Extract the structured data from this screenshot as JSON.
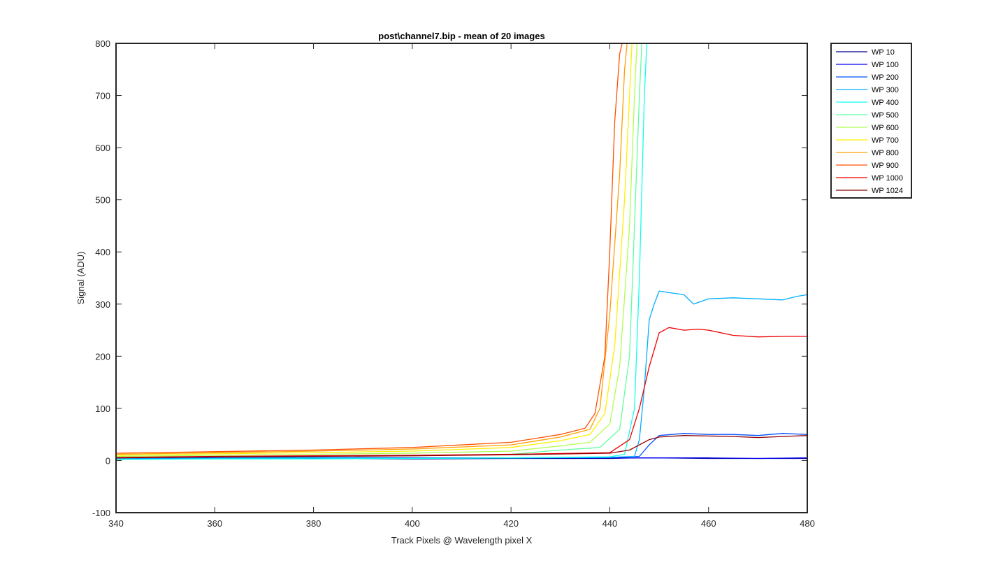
{
  "chart_data": {
    "type": "line",
    "title": "post\\channel7.bip - mean of 20 images",
    "xlabel": "Track Pixels @ Wavelength pixel X",
    "ylabel": "Signal (ADU)",
    "xlim": [
      340,
      480
    ],
    "ylim": [
      -100,
      800
    ],
    "xticks": [
      340,
      360,
      380,
      400,
      420,
      440,
      460,
      480
    ],
    "yticks": [
      -100,
      0,
      100,
      200,
      300,
      400,
      500,
      600,
      700,
      800
    ],
    "legend_position": "outside-top-right",
    "grid": false,
    "series": [
      {
        "name": "WP 10",
        "color": "#00008F",
        "x": [
          340,
          360,
          380,
          400,
          420,
          440,
          445,
          450,
          460,
          470,
          480
        ],
        "y": [
          3,
          4,
          4,
          3,
          4,
          4,
          5,
          5,
          4,
          4,
          4
        ]
      },
      {
        "name": "WP 100",
        "color": "#0000EF",
        "x": [
          340,
          360,
          380,
          400,
          420,
          440,
          445,
          450,
          460,
          470,
          480
        ],
        "y": [
          4,
          5,
          5,
          4,
          5,
          5,
          5,
          5,
          5,
          4,
          5
        ]
      },
      {
        "name": "WP 200",
        "color": "#0050FF",
        "x": [
          340,
          360,
          380,
          400,
          420,
          440,
          446,
          448,
          450,
          455,
          460,
          465,
          470,
          475,
          480
        ],
        "y": [
          4,
          5,
          6,
          5,
          5,
          6,
          8,
          30,
          48,
          52,
          50,
          50,
          48,
          52,
          50
        ]
      },
      {
        "name": "WP 300",
        "color": "#00AFFF",
        "x": [
          340,
          360,
          380,
          400,
          420,
          440,
          445,
          446,
          447,
          448,
          449,
          450,
          452,
          455,
          457,
          460,
          465,
          470,
          475,
          478,
          480
        ],
        "y": [
          3,
          4,
          5,
          4,
          5,
          6,
          8,
          40,
          140,
          270,
          300,
          325,
          322,
          318,
          300,
          310,
          312,
          310,
          308,
          315,
          318
        ]
      },
      {
        "name": "WP 400",
        "color": "#10FFEF",
        "x": [
          340,
          360,
          380,
          400,
          420,
          440,
          443,
          445,
          446,
          447,
          447.5
        ],
        "y": [
          2,
          3,
          3,
          4,
          5,
          7,
          12,
          100,
          350,
          700,
          800
        ]
      },
      {
        "name": "WP 500",
        "color": "#60FF9F",
        "x": [
          340,
          360,
          380,
          400,
          420,
          430,
          438,
          442,
          444,
          445,
          446,
          446.5
        ],
        "y": [
          5,
          7,
          8,
          9,
          12,
          20,
          25,
          60,
          200,
          450,
          700,
          800
        ]
      },
      {
        "name": "WP 600",
        "color": "#AFFF50",
        "x": [
          340,
          360,
          380,
          400,
          420,
          430,
          436,
          440,
          442,
          444,
          445,
          445.5
        ],
        "y": [
          8,
          10,
          12,
          14,
          18,
          28,
          35,
          70,
          180,
          450,
          700,
          800
        ]
      },
      {
        "name": "WP 700",
        "color": "#FFEF00",
        "x": [
          340,
          360,
          380,
          400,
          420,
          430,
          436,
          439,
          441,
          443,
          444,
          444.5
        ],
        "y": [
          10,
          13,
          15,
          18,
          25,
          38,
          50,
          90,
          220,
          500,
          700,
          800
        ]
      },
      {
        "name": "WP 800",
        "color": "#FF9F00",
        "x": [
          340,
          360,
          380,
          400,
          420,
          430,
          436,
          438,
          440,
          442,
          443,
          443.5
        ],
        "y": [
          12,
          15,
          18,
          22,
          30,
          45,
          60,
          100,
          280,
          550,
          750,
          800
        ]
      },
      {
        "name": "WP 900",
        "color": "#FF5000",
        "x": [
          340,
          360,
          380,
          400,
          420,
          430,
          435,
          437,
          439,
          440,
          441,
          442,
          442.5
        ],
        "y": [
          14,
          17,
          20,
          25,
          35,
          50,
          62,
          90,
          200,
          400,
          650,
          780,
          800
        ]
      },
      {
        "name": "WP 1000",
        "color": "#EF0000",
        "x": [
          340,
          360,
          380,
          400,
          420,
          440,
          444,
          446,
          448,
          450,
          452,
          455,
          458,
          460,
          465,
          470,
          475,
          480
        ],
        "y": [
          6,
          8,
          9,
          10,
          12,
          15,
          40,
          100,
          180,
          245,
          255,
          250,
          252,
          250,
          240,
          237,
          238,
          238
        ]
      },
      {
        "name": "WP 1024",
        "color": "#8F0000",
        "x": [
          340,
          360,
          380,
          400,
          420,
          440,
          444,
          446,
          448,
          450,
          455,
          460,
          465,
          470,
          475,
          480
        ],
        "y": [
          5,
          7,
          8,
          9,
          11,
          14,
          20,
          30,
          40,
          45,
          48,
          47,
          46,
          44,
          46,
          48
        ]
      }
    ]
  }
}
